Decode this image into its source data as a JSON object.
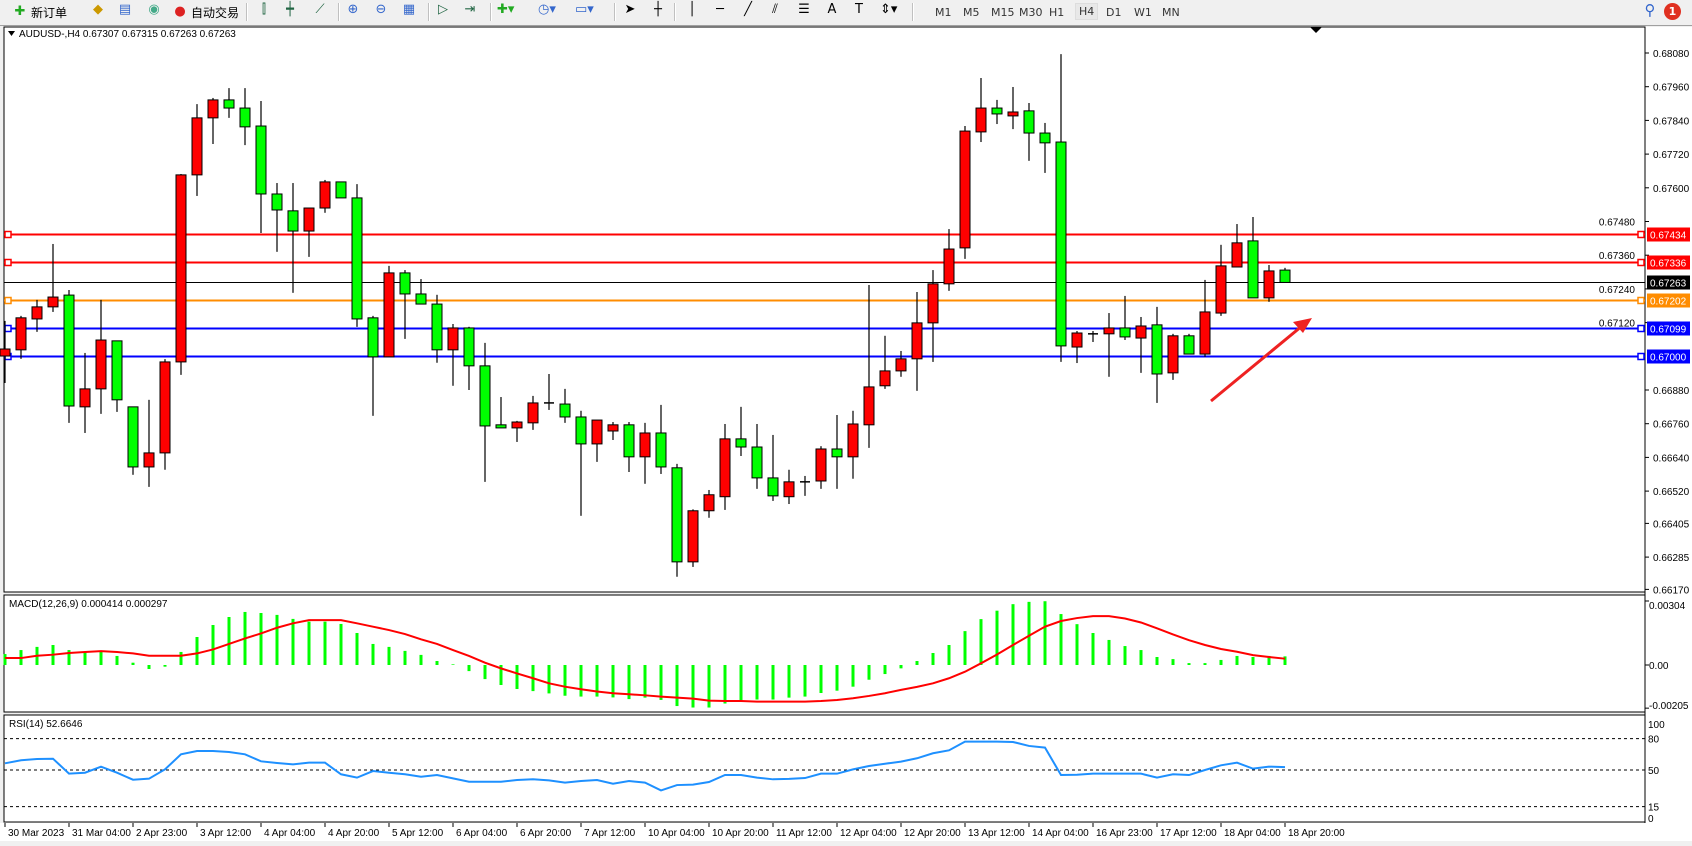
{
  "toolbar": {
    "new_order_label": "新订单",
    "auto_trading_label": "自动交易",
    "icons": [
      "new-order-icon",
      "folder-icon",
      "market-watch-icon",
      "signal-icon",
      "auto-trading-icon",
      "bar-chart-icon",
      "candlestick-icon",
      "line-chart-icon",
      "zoom-in-icon",
      "zoom-out-icon",
      "tile-windows-icon",
      "autoscroll-icon",
      "chart-shift-icon",
      "indicators-icon",
      "periods-icon",
      "templates-icon",
      "cursor-icon",
      "crosshair-icon",
      "vertical-line-icon",
      "horizontal-line-icon",
      "trendline-icon",
      "equidistant-channel-icon",
      "fibonacci-icon",
      "text-icon",
      "text-label-icon",
      "arrows-icon"
    ],
    "timeframes": [
      "M1",
      "M5",
      "M15",
      "M30",
      "H1",
      "H4",
      "D1",
      "W1",
      "MN"
    ],
    "active_timeframe": "H4",
    "notification_count": "1"
  },
  "chart_data": {
    "type": "candlestick",
    "symbol_header": "AUDUSD-,H4  0.67307 0.67315 0.67263 0.67263",
    "bull_color": "#ff0000",
    "bear_color": "#00ff00",
    "ylim": [
      0.6617,
      0.6817
    ],
    "price_ticks": [
      "0.68080",
      "0.67960",
      "0.67840",
      "0.67720",
      "0.67600",
      "0.67480",
      "0.67360",
      "0.67240",
      "0.67120",
      "0.66880",
      "0.66760",
      "0.66640",
      "0.66520",
      "0.66405",
      "0.66285",
      "0.66170"
    ],
    "horizontal_lines": [
      {
        "price": "0.67434",
        "color": "#ff0000"
      },
      {
        "price": "0.67336",
        "color": "#ff0000"
      },
      {
        "price": "0.67263",
        "color": "#000000"
      },
      {
        "price": "0.67202",
        "color": "#ff8c00"
      },
      {
        "price": "0.67099",
        "color": "#0000ff"
      },
      {
        "price": "0.67000",
        "color": "#0000ff"
      }
    ],
    "time_labels": [
      "30 Mar 2023",
      "31 Mar 04:00",
      "2 Apr 23:00",
      "3 Apr 12:00",
      "4 Apr 04:00",
      "4 Apr 20:00",
      "5 Apr 12:00",
      "6 Apr 04:00",
      "6 Apr 20:00",
      "7 Apr 12:00",
      "10 Apr 04:00",
      "10 Apr 20:00",
      "11 Apr 12:00",
      "12 Apr 04:00",
      "12 Apr 20:00",
      "13 Apr 12:00",
      "14 Apr 04:00",
      "16 Apr 23:00",
      "17 Apr 12:00",
      "18 Apr 04:00",
      "18 Apr 20:00"
    ],
    "ohlc": [
      [
        0.67001,
        0.67126,
        0.66905,
        0.67026
      ],
      [
        0.67023,
        0.67144,
        0.66991,
        0.67137
      ],
      [
        0.67133,
        0.67201,
        0.67087,
        0.67176
      ],
      [
        0.67176,
        0.674,
        0.67158,
        0.67211
      ],
      [
        0.67218,
        0.67236,
        0.66763,
        0.66823
      ],
      [
        0.6682,
        0.67012,
        0.66727,
        0.66884
      ],
      [
        0.66884,
        0.67201,
        0.66795,
        0.67058
      ],
      [
        0.67055,
        0.67055,
        0.66802,
        0.66845
      ],
      [
        0.6682,
        0.6682,
        0.66578,
        0.66606
      ],
      [
        0.66606,
        0.66845,
        0.66535,
        0.66656
      ],
      [
        0.66656,
        0.6699,
        0.66596,
        0.6698
      ],
      [
        0.6698,
        0.67649,
        0.66934,
        0.67646
      ],
      [
        0.67646,
        0.67898,
        0.67571,
        0.67849
      ],
      [
        0.67849,
        0.6792,
        0.67756,
        0.67913
      ],
      [
        0.67913,
        0.67955,
        0.67849,
        0.67884
      ],
      [
        0.67884,
        0.67955,
        0.67752,
        0.67817
      ],
      [
        0.6782,
        0.67909,
        0.67439,
        0.67578
      ],
      [
        0.67578,
        0.67617,
        0.67372,
        0.67521
      ],
      [
        0.67518,
        0.67617,
        0.67226,
        0.67446
      ],
      [
        0.67446,
        0.67528,
        0.67354,
        0.67528
      ],
      [
        0.67528,
        0.67628,
        0.67511,
        0.67621
      ],
      [
        0.67621,
        0.67621,
        0.67564,
        0.67564
      ],
      [
        0.67564,
        0.67613,
        0.67105,
        0.67133
      ],
      [
        0.67137,
        0.67144,
        0.66788,
        0.66998
      ],
      [
        0.66998,
        0.67322,
        0.66998,
        0.67297
      ],
      [
        0.67297,
        0.67307,
        0.67062,
        0.67222
      ],
      [
        0.67222,
        0.67275,
        0.67186,
        0.67186
      ],
      [
        0.67186,
        0.67219,
        0.66977,
        0.67023
      ],
      [
        0.67023,
        0.67115,
        0.66895,
        0.67101
      ],
      [
        0.67101,
        0.67105,
        0.6688,
        0.66966
      ],
      [
        0.66966,
        0.67048,
        0.66553,
        0.66752
      ],
      [
        0.66756,
        0.66855,
        0.66745,
        0.66745
      ],
      [
        0.66745,
        0.6677,
        0.66695,
        0.66766
      ],
      [
        0.66763,
        0.66859,
        0.66738,
        0.66834
      ],
      [
        0.66834,
        0.66937,
        0.66809,
        0.66834
      ],
      [
        0.6683,
        0.66884,
        0.66763,
        0.66784
      ],
      [
        0.66784,
        0.66806,
        0.66432,
        0.66688
      ],
      [
        0.66688,
        0.66773,
        0.66624,
        0.66773
      ],
      [
        0.66734,
        0.66766,
        0.66702,
        0.66756
      ],
      [
        0.66756,
        0.66766,
        0.66588,
        0.66642
      ],
      [
        0.66642,
        0.66763,
        0.66546,
        0.66727
      ],
      [
        0.66727,
        0.66827,
        0.66581,
        0.66606
      ],
      [
        0.66603,
        0.66617,
        0.66215,
        0.66268
      ],
      [
        0.66268,
        0.66455,
        0.6625,
        0.6645
      ],
      [
        0.6645,
        0.66524,
        0.66425,
        0.66507
      ],
      [
        0.665,
        0.66759,
        0.66453,
        0.66706
      ],
      [
        0.66706,
        0.6682,
        0.66645,
        0.66677
      ],
      [
        0.66677,
        0.66759,
        0.66528,
        0.66567
      ],
      [
        0.66567,
        0.6672,
        0.66485,
        0.66503
      ],
      [
        0.665,
        0.66596,
        0.66474,
        0.66553
      ],
      [
        0.66553,
        0.66574,
        0.66503,
        0.66553
      ],
      [
        0.66556,
        0.6668,
        0.66528,
        0.6667
      ],
      [
        0.6667,
        0.66791,
        0.66528,
        0.66642
      ],
      [
        0.66642,
        0.66806,
        0.66564,
        0.66759
      ],
      [
        0.66756,
        0.67254,
        0.66674,
        0.66891
      ],
      [
        0.66895,
        0.67073,
        0.66884,
        0.66948
      ],
      [
        0.66948,
        0.67019,
        0.66927,
        0.66991
      ],
      [
        0.66991,
        0.67229,
        0.66877,
        0.67119
      ],
      [
        0.67119,
        0.67307,
        0.6698,
        0.67258
      ],
      [
        0.67258,
        0.67453,
        0.67233,
        0.67382
      ],
      [
        0.67386,
        0.6782,
        0.67347,
        0.67802
      ],
      [
        0.67799,
        0.67991,
        0.67763,
        0.67884
      ],
      [
        0.67884,
        0.67913,
        0.67827,
        0.67863
      ],
      [
        0.67856,
        0.67959,
        0.67809,
        0.6787
      ],
      [
        0.67874,
        0.67902,
        0.67696,
        0.67795
      ],
      [
        0.67795,
        0.67831,
        0.67653,
        0.6776
      ],
      [
        0.67763,
        0.68076,
        0.6698,
        0.67037
      ],
      [
        0.67033,
        0.6709,
        0.66976,
        0.67083
      ],
      [
        0.6708,
        0.6709,
        0.67051,
        0.6708
      ],
      [
        0.6708,
        0.67154,
        0.66927,
        0.67101
      ],
      [
        0.67101,
        0.67215,
        0.67058,
        0.67069
      ],
      [
        0.67065,
        0.6714,
        0.66941,
        0.67108
      ],
      [
        0.67112,
        0.67176,
        0.66834,
        0.66937
      ],
      [
        0.66941,
        0.6708,
        0.66916,
        0.67073
      ],
      [
        0.67073,
        0.6708,
        0.67008,
        0.67008
      ],
      [
        0.67008,
        0.67272,
        0.66998,
        0.67158
      ],
      [
        0.67154,
        0.67397,
        0.67144,
        0.67322
      ],
      [
        0.67318,
        0.67471,
        0.67318,
        0.67404
      ],
      [
        0.67411,
        0.67496,
        0.67208,
        0.67208
      ],
      [
        0.67208,
        0.67325,
        0.67194,
        0.67304
      ],
      [
        0.67307,
        0.67315,
        0.67263,
        0.67263
      ]
    ],
    "macd": {
      "label": "MACD(12,26,9) 0.000414 0.000297",
      "ticks": [
        "0.00304",
        "0.00",
        "-0.00205"
      ],
      "histogram_color": "#00ff00",
      "signal_color": "#ff0000",
      "histogram": [
        0.00052,
        0.00071,
        0.00086,
        0.00095,
        0.00071,
        0.0006,
        0.00062,
        0.00043,
        0.00011,
        -0.00019,
        -8e-05,
        0.00062,
        0.00133,
        0.0019,
        0.00228,
        0.00252,
        0.00247,
        0.00238,
        0.00219,
        0.00206,
        0.00206,
        0.00195,
        0.00152,
        0.001,
        0.00086,
        0.00067,
        0.00048,
        0.00019,
        3e-05,
        -0.00029,
        -0.00067,
        -0.00095,
        -0.00114,
        -0.00124,
        -0.00135,
        -0.00146,
        -0.0015,
        -0.0015,
        -0.00154,
        -0.00162,
        -0.00155,
        -0.00166,
        -0.00195,
        -0.00202,
        -0.00202,
        -0.00183,
        -0.00167,
        -0.00164,
        -0.00164,
        -0.00155,
        -0.0015,
        -0.00133,
        -0.00122,
        -0.00103,
        -0.0007,
        -0.00043,
        -0.00016,
        0.00019,
        0.00057,
        0.00095,
        0.00161,
        0.00218,
        0.00258,
        0.00289,
        0.003,
        0.00303,
        0.00242,
        0.00194,
        0.00152,
        0.00119,
        0.0009,
        0.00071,
        0.00038,
        0.00028,
        9e-05,
        9e-05,
        0.00024,
        0.00043,
        0.00038,
        0.00043,
        0.00041
      ],
      "signal": [
        0.00033,
        0.00033,
        0.00044,
        0.00049,
        0.00057,
        0.00062,
        0.00066,
        0.00062,
        0.00055,
        0.00044,
        0.00044,
        0.00044,
        0.00055,
        0.00074,
        0.001,
        0.00126,
        0.0015,
        0.00177,
        0.00198,
        0.00213,
        0.00213,
        0.00213,
        0.00198,
        0.00182,
        0.00166,
        0.00147,
        0.00122,
        0.001,
        0.00071,
        0.00043,
        0.00011,
        -0.00016,
        -0.0004,
        -0.00063,
        -0.00087,
        -0.00103,
        -0.00115,
        -0.00126,
        -0.00134,
        -0.00139,
        -0.00144,
        -0.0015,
        -0.00155,
        -0.0016,
        -0.00169,
        -0.00171,
        -0.00171,
        -0.00174,
        -0.00174,
        -0.00174,
        -0.00174,
        -0.00171,
        -0.00166,
        -0.00158,
        -0.00147,
        -0.00134,
        -0.00118,
        -0.00104,
        -0.00087,
        -0.00063,
        -0.00032,
        8e-05,
        0.0005,
        0.00095,
        0.00139,
        0.00182,
        0.00209,
        0.00223,
        0.00232,
        0.00232,
        0.00221,
        0.00202,
        0.00174,
        0.00145,
        0.00118,
        0.00095,
        0.00076,
        0.00063,
        0.00047,
        0.00038,
        0.0003
      ]
    },
    "rsi": {
      "label": "RSI(14) 52.6646",
      "ticks": [
        "100",
        "80",
        "50",
        "15",
        "0"
      ],
      "levels": [
        80,
        50,
        15
      ],
      "color": "#1e90ff",
      "values": [
        56.4,
        59.3,
        60.5,
        60.8,
        46.5,
        47.4,
        53.2,
        47.4,
        40.7,
        41.7,
        50.6,
        65,
        68.2,
        68.2,
        67.2,
        65,
        58.3,
        56.7,
        55.4,
        57,
        57,
        45.9,
        42.7,
        49,
        47.4,
        45.9,
        43.6,
        45.2,
        42,
        38.8,
        38.8,
        38.8,
        40.4,
        41.1,
        40.1,
        37.9,
        39.5,
        40.4,
        36.9,
        39.5,
        37.9,
        30.5,
        35.6,
        36,
        38.5,
        45.2,
        45.2,
        42.7,
        41.1,
        41.5,
        42.3,
        46.5,
        46.5,
        50.6,
        53.8,
        56,
        58,
        61.2,
        66,
        68.8,
        77.1,
        77.1,
        77.1,
        76.8,
        73,
        71.4,
        45.2,
        45.5,
        46.5,
        46.5,
        46.5,
        46.5,
        42.7,
        45.9,
        45.2,
        50,
        54.5,
        57,
        51.3,
        53.2,
        52.7
      ]
    }
  }
}
